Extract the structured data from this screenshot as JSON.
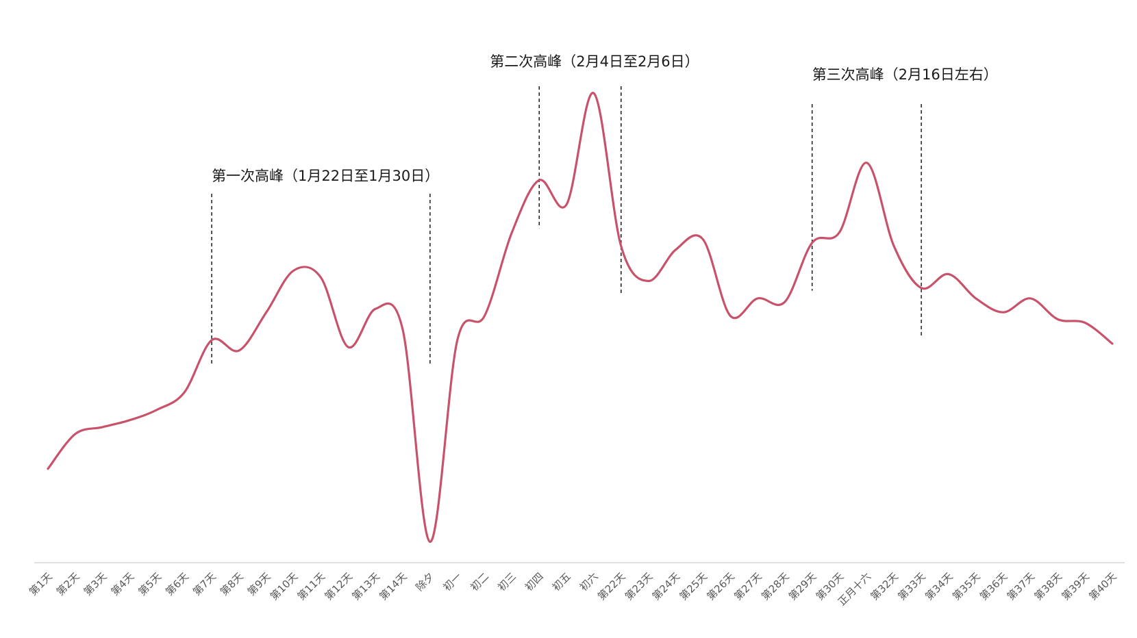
{
  "chart_data": {
    "type": "line",
    "title": "",
    "xlabel": "",
    "ylabel": "",
    "y_axis_visible": false,
    "grid": false,
    "legend": "none",
    "line_color": "#c8526a",
    "categories": [
      "第1天",
      "第2天",
      "第3天",
      "第4天",
      "第5天",
      "第6天",
      "第7天",
      "第8天",
      "第9天",
      "第10天",
      "第11天",
      "第12天",
      "第13天",
      "第14天",
      "除夕",
      "初一",
      "初二",
      "初三",
      "初四",
      "初五",
      "初六",
      "第22天",
      "第23天",
      "第24天",
      "第25天",
      "第26天",
      "第27天",
      "第28天",
      "第29天",
      "第30天",
      "正月十六",
      "第32天",
      "第33天",
      "第34天",
      "第35天",
      "第36天",
      "第37天",
      "第38天",
      "第39天",
      "第40天"
    ],
    "series": [
      {
        "values": [
          27,
          37,
          39,
          41,
          44,
          49,
          64,
          61,
          72,
          84,
          82,
          62,
          73,
          67,
          6,
          64,
          71,
          95,
          110,
          103,
          135,
          91,
          81,
          90,
          93,
          71,
          76,
          75,
          92,
          95,
          115,
          91,
          79,
          83,
          76,
          72,
          76,
          70,
          69,
          63
        ]
      }
    ],
    "ylim": [
      0,
      150
    ],
    "annotations": [
      {
        "text": "第一次高峰（1月22日至1月30日）",
        "start_index": 6,
        "end_index": 14
      },
      {
        "text": "第二次高峰（2月4日至2月6日）",
        "start_index": 18,
        "end_index": 21
      },
      {
        "text": "第三次高峰（2月16日左右）",
        "start_index": 28,
        "end_index": 32
      }
    ]
  }
}
